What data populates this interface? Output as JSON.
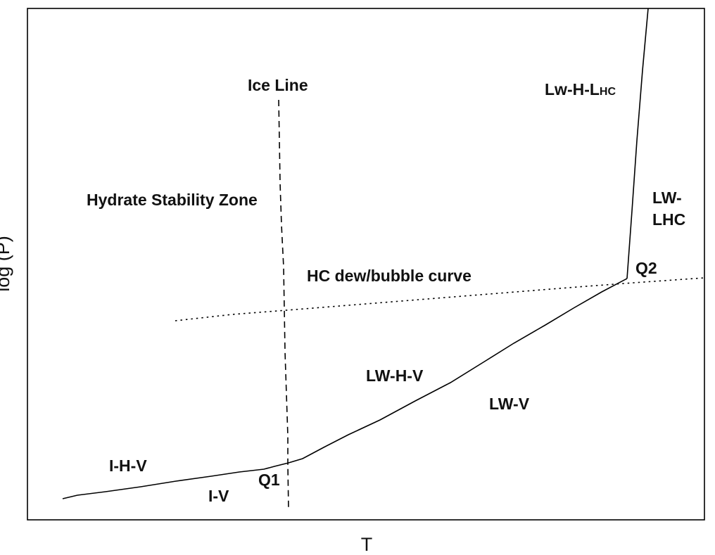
{
  "axes": {
    "xlabel": "T",
    "ylabel": "log (P)"
  },
  "labels": {
    "ice_line": "Ice Line",
    "hydrate_zone": "Hydrate Stability Zone",
    "hc_curve": "HC dew/bubble curve",
    "lw_h_lhc_main": "Lw-H-L",
    "lw_h_lhc_sub": "HC",
    "lw_lhc_line1": "LW-",
    "lw_lhc_line2": "LHC",
    "q1": "Q1",
    "q2": "Q2",
    "lw_h_v": "LW-H-V",
    "lw_v": "LW-V",
    "i_h_v": "I-H-V",
    "i_v": "I-V"
  }
}
